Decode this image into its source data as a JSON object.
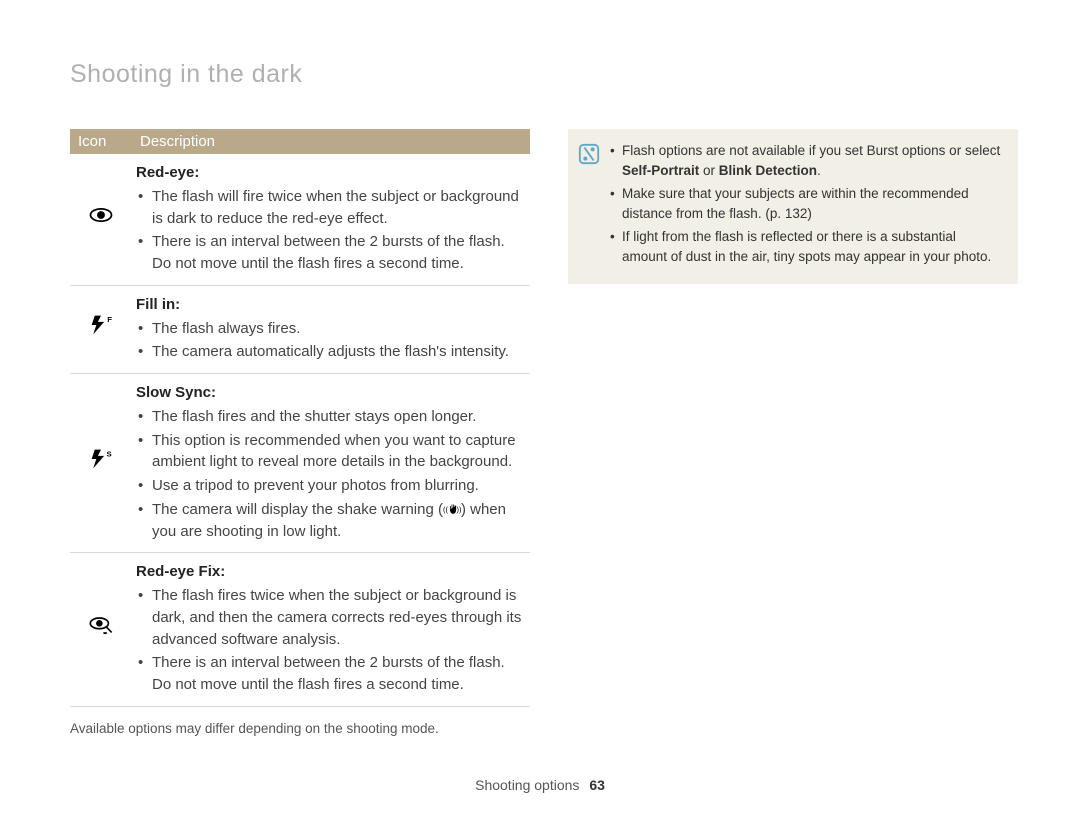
{
  "section_title": "Shooting in the dark",
  "table": {
    "header_icon": "Icon",
    "header_desc": "Description",
    "rows": [
      {
        "icon_name": "eye-icon",
        "title": "Red-eye",
        "items": [
          "The flash will fire twice when the subject or background is dark to reduce the red-eye effect.",
          "There is an interval between the 2 bursts of the flash. Do not move until the flash fires a second time."
        ]
      },
      {
        "icon_name": "flash-f-icon",
        "title": "Fill in",
        "items": [
          "The flash always fires.",
          "The camera automatically adjusts the flash's intensity."
        ]
      },
      {
        "icon_name": "flash-s-icon",
        "title": "Slow Sync",
        "items": [
          "The flash fires and the shutter stays open longer.",
          "This option is recommended when you want to capture ambient light to reveal more details in the background.",
          "Use a tripod to prevent your photos from blurring.",
          "The camera will display the shake warning (__HAND__) when you are shooting in low light."
        ]
      },
      {
        "icon_name": "eye-brush-icon",
        "title": "Red-eye Fix",
        "items": [
          "The flash fires twice when the subject or background is dark, and then the camera corrects red-eyes through its advanced software analysis.",
          "There is an interval between the 2 bursts of the flash. Do not move until the flash fires a second time."
        ]
      }
    ]
  },
  "footnote": "Available options may differ depending on the shooting mode.",
  "note": {
    "items": [
      {
        "pre": "Flash options are not available if you set Burst options or select ",
        "bold": "Self-Portrait",
        "mid": " or ",
        "bold2": "Blink Detection",
        "post": "."
      },
      {
        "text": "Make sure that your subjects are within the recommended distance from the flash. (p. 132)"
      },
      {
        "text": "If light from the flash is reflected or there is a substantial amount of dust in the air, tiny spots may appear in your photo."
      }
    ]
  },
  "footer": {
    "label": "Shooting options",
    "page": "63"
  }
}
